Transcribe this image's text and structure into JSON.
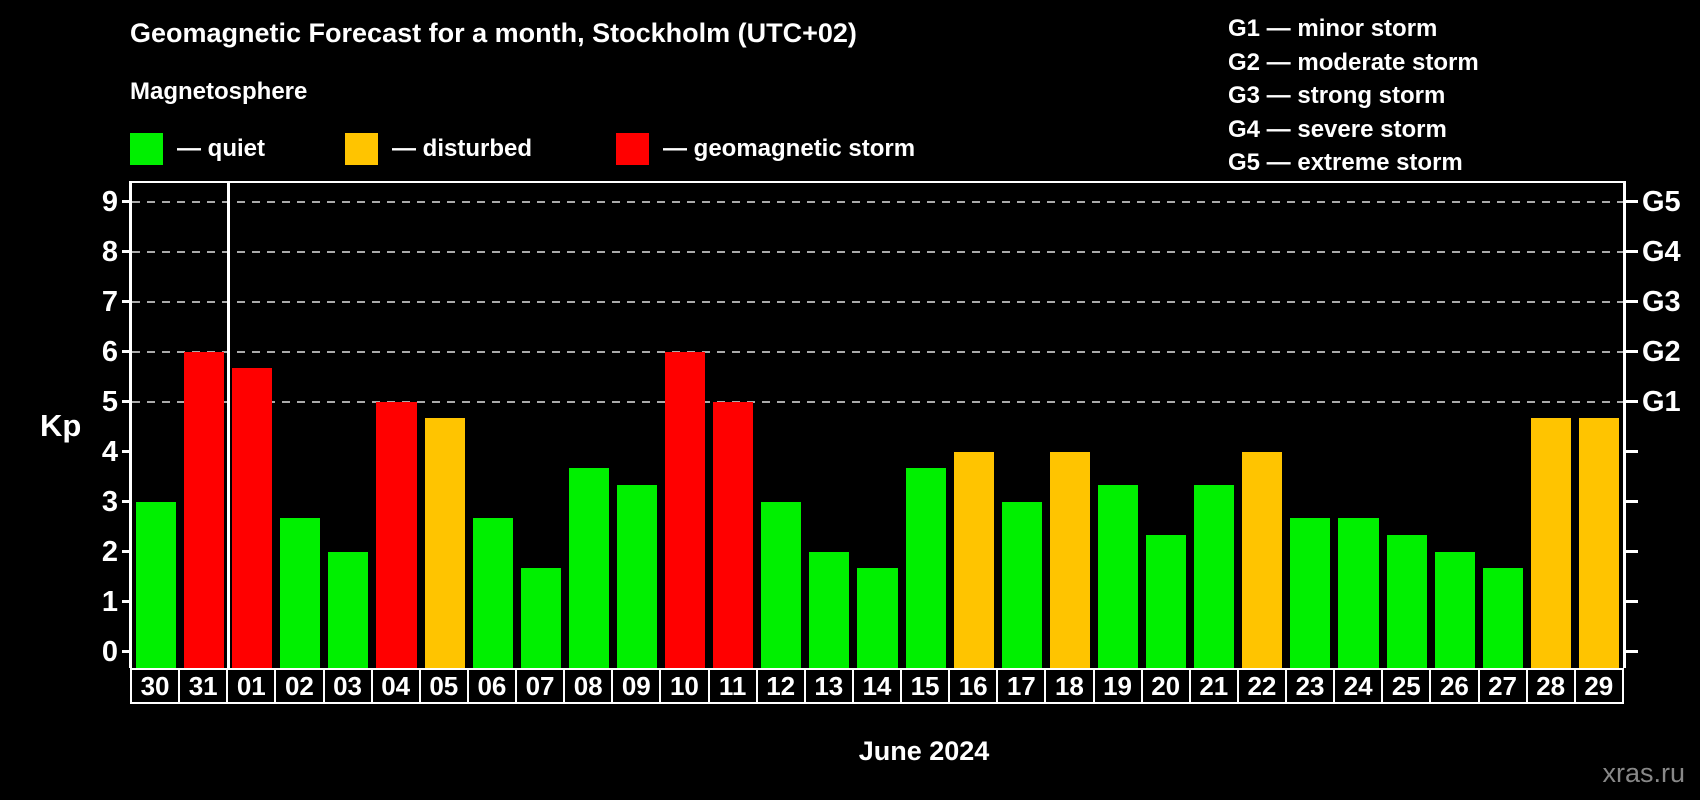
{
  "header": {
    "title": "Geomagnetic Forecast for a month, Stockholm (UTC+02)",
    "subtitle": "Magnetosphere"
  },
  "legend": {
    "items": [
      {
        "key": "quiet",
        "label": "— quiet",
        "color": "#00f000"
      },
      {
        "key": "disturbed",
        "label": "— disturbed",
        "color": "#ffc400"
      },
      {
        "key": "storm",
        "label": "— geomagnetic storm",
        "color": "#ff0000"
      }
    ]
  },
  "g_legend": {
    "items": [
      "G1 — minor storm",
      "G2 — moderate storm",
      "G3 — strong storm",
      "G4 — severe storm",
      "G5 — extreme storm"
    ]
  },
  "chart_data": {
    "type": "bar",
    "title": "Geomagnetic Forecast for a month, Stockholm (UTC+02)",
    "ylabel": "Kp",
    "xlabel": "June 2024",
    "ylim": [
      0,
      9
    ],
    "y_ticks": [
      0,
      1,
      2,
      3,
      4,
      5,
      6,
      7,
      8,
      9
    ],
    "grid_levels": [
      5,
      6,
      7,
      8,
      9
    ],
    "grid_on": true,
    "right_axis_labels": [
      {
        "kp": 5,
        "label": "G1"
      },
      {
        "kp": 6,
        "label": "G2"
      },
      {
        "kp": 7,
        "label": "G3"
      },
      {
        "kp": 8,
        "label": "G4"
      },
      {
        "kp": 9,
        "label": "G5"
      }
    ],
    "categories": [
      "30",
      "31",
      "01",
      "02",
      "03",
      "04",
      "05",
      "06",
      "07",
      "08",
      "09",
      "10",
      "11",
      "12",
      "13",
      "14",
      "15",
      "16",
      "17",
      "18",
      "19",
      "20",
      "21",
      "22",
      "23",
      "24",
      "25",
      "26",
      "27",
      "28",
      "29"
    ],
    "series": [
      {
        "name": "Kp forecast",
        "values": [
          3.0,
          6.0,
          5.67,
          2.67,
          2.0,
          5.0,
          4.67,
          2.67,
          1.67,
          3.67,
          3.33,
          6.0,
          5.0,
          3.0,
          2.0,
          1.67,
          3.67,
          4.0,
          3.0,
          4.0,
          3.33,
          2.33,
          3.33,
          4.0,
          2.67,
          2.67,
          2.33,
          2.0,
          1.67,
          4.67,
          4.67
        ]
      }
    ],
    "bar_states": [
      "quiet",
      "storm",
      "storm",
      "quiet",
      "quiet",
      "storm",
      "disturbed",
      "quiet",
      "quiet",
      "quiet",
      "quiet",
      "storm",
      "storm",
      "quiet",
      "quiet",
      "quiet",
      "quiet",
      "disturbed",
      "quiet",
      "disturbed",
      "quiet",
      "quiet",
      "quiet",
      "disturbed",
      "quiet",
      "quiet",
      "quiet",
      "quiet",
      "quiet",
      "disturbed",
      "disturbed"
    ],
    "state_colors": {
      "quiet": "#00f000",
      "disturbed": "#ffc400",
      "storm": "#ff0000"
    },
    "month_separator_after_index": 1
  },
  "footer": {
    "xaxis_title": "June 2024",
    "watermark": "xras.ru"
  }
}
